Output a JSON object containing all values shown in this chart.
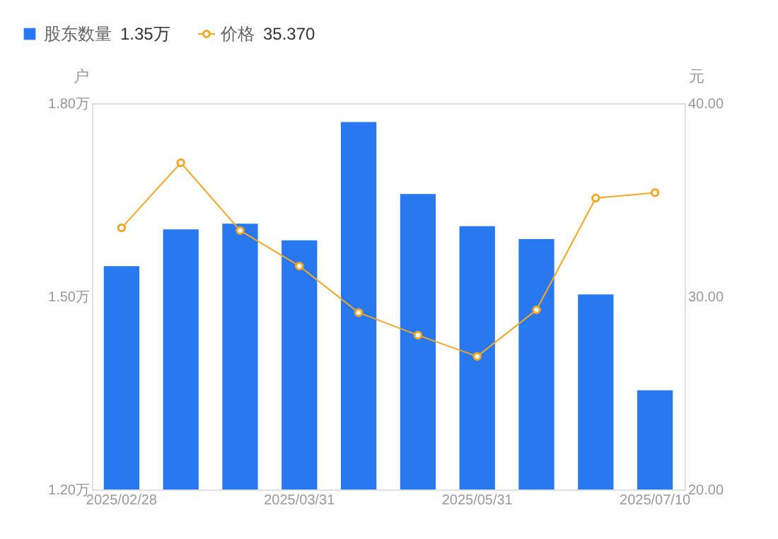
{
  "chart_data": {
    "type": "bar",
    "categories": [
      "2025/02/28",
      null,
      null,
      "2025/03/31",
      null,
      null,
      "2025/05/31",
      null,
      null,
      "2025/07/10"
    ],
    "series": [
      {
        "name": "股东数量",
        "color": "#2878f0",
        "values": [
          1.547,
          1.604,
          1.613,
          1.587,
          1.771,
          1.659,
          1.609,
          1.589,
          1.503,
          1.354
        ]
      },
      {
        "name": "价格",
        "type": "line",
        "axis": "y2",
        "color": "#f5a623",
        "values": [
          33.55,
          36.92,
          33.41,
          31.57,
          29.16,
          27.99,
          26.89,
          29.3,
          35.09,
          35.37
        ]
      }
    ],
    "ylabel": "户",
    "y2label": "元",
    "ylim": [
      1.2,
      1.8
    ],
    "yticks": [
      {
        "value": 1.2,
        "label": "1.20万"
      },
      {
        "value": 1.5,
        "label": "1.50万"
      },
      {
        "value": 1.8,
        "label": "1.80万"
      }
    ],
    "y2lim": [
      20,
      40
    ],
    "y2ticks": [
      {
        "value": 20,
        "label": "20.00"
      },
      {
        "value": 30,
        "label": "30.00"
      },
      {
        "value": 40,
        "label": "40.00"
      }
    ],
    "annotations": [
      "1.35万",
      "35.370"
    ],
    "legend": "top left",
    "marker": "circle",
    "line_style": "solid",
    "grid": false
  }
}
